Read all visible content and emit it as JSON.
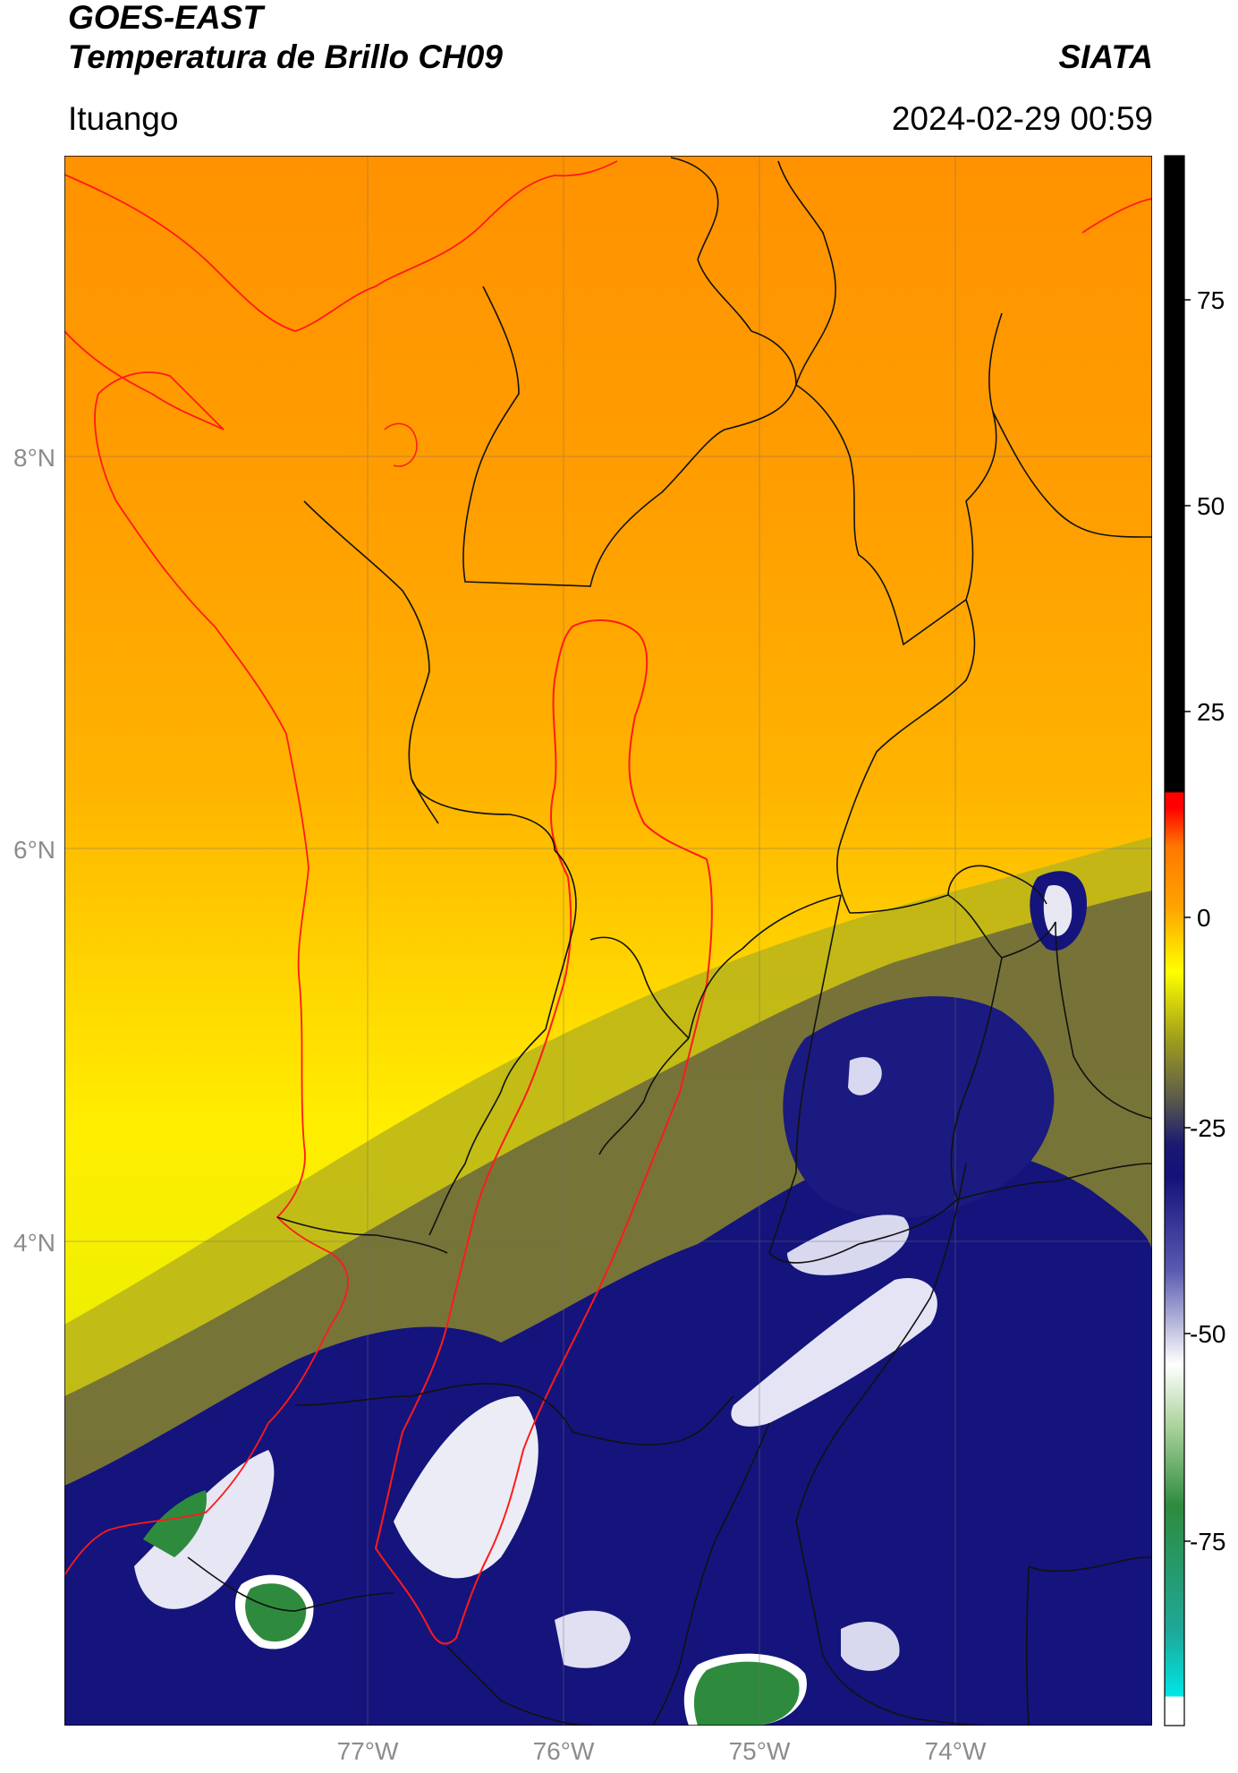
{
  "header": {
    "satellite": "GOES-EAST",
    "product": "Temperatura de Brillo CH09",
    "organization": "SIATA",
    "location": "Ituango",
    "datetime": "2024-02-29 00:59"
  },
  "map": {
    "lat_labels": [
      "8°N",
      "6°N",
      "4°N"
    ],
    "lon_labels": [
      "77°W",
      "76°W",
      "75°W",
      "74°W"
    ]
  },
  "colorbar": {
    "ticks": [
      "75",
      "50",
      "25",
      "0",
      "-25",
      "-50",
      "-75"
    ],
    "scale": [
      {
        "color": "#000000",
        "label": "above 8"
      },
      {
        "color": "#ff0000",
        "label": "0 to 8"
      },
      {
        "color": "#ff8c00",
        "label": "-10 to 0"
      },
      {
        "color": "#ffff00",
        "label": "-20 to -10"
      },
      {
        "color": "#6b6b3a",
        "label": "-25 to -20"
      },
      {
        "color": "#12127a",
        "label": "-35 to -25"
      },
      {
        "color": "#ffffff",
        "label": "-50"
      },
      {
        "color": "#2e8b3e",
        "label": "-65"
      },
      {
        "color": "#00dede",
        "label": "-85"
      }
    ]
  }
}
